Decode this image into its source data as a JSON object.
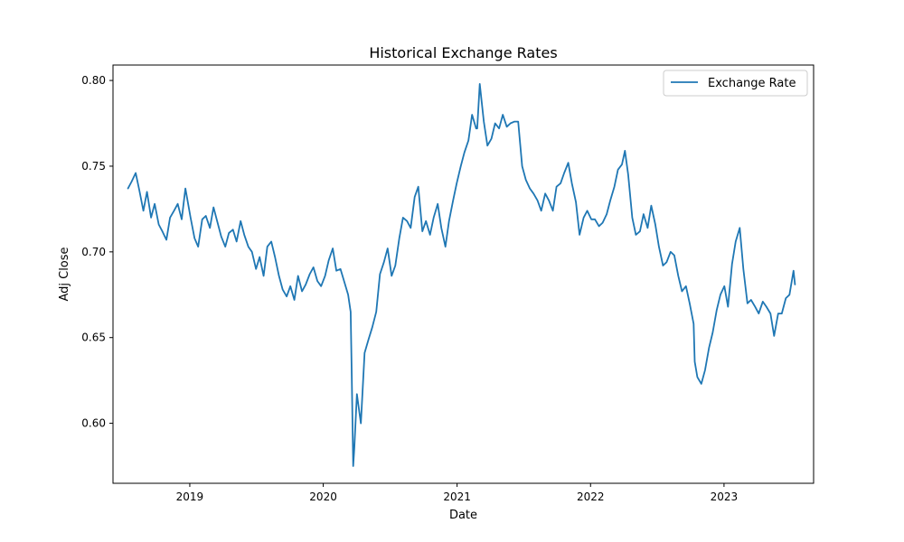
{
  "chart_data": {
    "type": "line",
    "title": "Historical Exchange Rates",
    "xlabel": "Date",
    "ylabel": "Adj Close",
    "xlim": [
      "2018-06-05",
      "2023-09-03"
    ],
    "ylim": [
      0.565,
      0.809
    ],
    "x_ticks": [
      "2019-01-01",
      "2020-01-01",
      "2021-01-01",
      "2022-01-01",
      "2023-01-01"
    ],
    "x_tick_labels": [
      "2019",
      "2020",
      "2021",
      "2022",
      "2023"
    ],
    "y_ticks": [
      0.6,
      0.65,
      0.7,
      0.75,
      0.8
    ],
    "y_tick_labels": [
      "0.60",
      "0.65",
      "0.70",
      "0.75",
      "0.80"
    ],
    "grid": false,
    "legend": {
      "position": "top-right"
    },
    "colors": {
      "series": "#1f77b4"
    },
    "series": [
      {
        "name": "Exchange Rate",
        "x": [
          "2018-07-16",
          "2018-07-26",
          "2018-08-06",
          "2018-08-16",
          "2018-08-27",
          "2018-09-06",
          "2018-09-17",
          "2018-09-27",
          "2018-10-08",
          "2018-10-18",
          "2018-10-29",
          "2018-11-08",
          "2018-11-19",
          "2018-11-29",
          "2018-12-10",
          "2018-12-20",
          "2019-01-03",
          "2019-01-14",
          "2019-01-24",
          "2019-02-04",
          "2019-02-14",
          "2019-02-25",
          "2019-03-07",
          "2019-03-18",
          "2019-03-28",
          "2019-04-08",
          "2019-04-18",
          "2019-04-29",
          "2019-05-09",
          "2019-05-20",
          "2019-05-30",
          "2019-06-10",
          "2019-06-20",
          "2019-07-01",
          "2019-07-11",
          "2019-07-22",
          "2019-08-01",
          "2019-08-12",
          "2019-08-22",
          "2019-09-02",
          "2019-09-12",
          "2019-09-23",
          "2019-10-03",
          "2019-10-14",
          "2019-10-24",
          "2019-11-04",
          "2019-11-14",
          "2019-11-25",
          "2019-12-05",
          "2019-12-16",
          "2019-12-26",
          "2020-01-06",
          "2020-01-16",
          "2020-01-27",
          "2020-02-06",
          "2020-02-17",
          "2020-02-27",
          "2020-03-09",
          "2020-03-16",
          "2020-03-19",
          "2020-03-23",
          "2020-03-26",
          "2020-04-02",
          "2020-04-13",
          "2020-04-23",
          "2020-05-04",
          "2020-05-14",
          "2020-05-25",
          "2020-06-04",
          "2020-06-15",
          "2020-06-25",
          "2020-07-06",
          "2020-07-16",
          "2020-07-27",
          "2020-08-06",
          "2020-08-17",
          "2020-08-27",
          "2020-09-07",
          "2020-09-17",
          "2020-09-28",
          "2020-10-08",
          "2020-10-19",
          "2020-10-29",
          "2020-11-09",
          "2020-11-19",
          "2020-11-30",
          "2020-12-10",
          "2020-12-21",
          "2020-12-31",
          "2021-01-11",
          "2021-01-21",
          "2021-02-01",
          "2021-02-11",
          "2021-02-22",
          "2021-02-25",
          "2021-03-04",
          "2021-03-15",
          "2021-03-25",
          "2021-04-05",
          "2021-04-15",
          "2021-04-26",
          "2021-05-06",
          "2021-05-17",
          "2021-05-27",
          "2021-06-07",
          "2021-06-17",
          "2021-06-28",
          "2021-07-08",
          "2021-07-19",
          "2021-07-29",
          "2021-08-09",
          "2021-08-19",
          "2021-08-30",
          "2021-09-09",
          "2021-09-20",
          "2021-09-30",
          "2021-10-11",
          "2021-10-21",
          "2021-11-01",
          "2021-11-11",
          "2021-11-22",
          "2021-12-02",
          "2021-12-13",
          "2021-12-23",
          "2022-01-03",
          "2022-01-13",
          "2022-01-24",
          "2022-02-03",
          "2022-02-14",
          "2022-02-24",
          "2022-03-07",
          "2022-03-17",
          "2022-03-28",
          "2022-04-05",
          "2022-04-14",
          "2022-04-25",
          "2022-05-05",
          "2022-05-16",
          "2022-05-26",
          "2022-06-06",
          "2022-06-16",
          "2022-06-27",
          "2022-07-07",
          "2022-07-18",
          "2022-07-28",
          "2022-08-08",
          "2022-08-18",
          "2022-08-29",
          "2022-09-08",
          "2022-09-19",
          "2022-09-29",
          "2022-10-10",
          "2022-10-13",
          "2022-10-20",
          "2022-10-31",
          "2022-11-10",
          "2022-11-21",
          "2022-12-01",
          "2022-12-12",
          "2022-12-22",
          "2023-01-02",
          "2023-01-12",
          "2023-01-23",
          "2023-02-02",
          "2023-02-13",
          "2023-02-23",
          "2023-03-06",
          "2023-03-16",
          "2023-03-27",
          "2023-04-06",
          "2023-04-17",
          "2023-04-27",
          "2023-05-08",
          "2023-05-18",
          "2023-05-29",
          "2023-06-08",
          "2023-06-19",
          "2023-06-29",
          "2023-07-10",
          "2023-07-14"
        ],
        "y": [
          0.737,
          0.741,
          0.746,
          0.736,
          0.724,
          0.735,
          0.72,
          0.728,
          0.716,
          0.712,
          0.707,
          0.72,
          0.724,
          0.728,
          0.719,
          0.737,
          0.72,
          0.708,
          0.703,
          0.719,
          0.721,
          0.714,
          0.726,
          0.717,
          0.709,
          0.703,
          0.711,
          0.713,
          0.706,
          0.718,
          0.71,
          0.703,
          0.7,
          0.69,
          0.697,
          0.686,
          0.703,
          0.706,
          0.697,
          0.686,
          0.678,
          0.674,
          0.68,
          0.672,
          0.686,
          0.677,
          0.681,
          0.687,
          0.691,
          0.683,
          0.68,
          0.686,
          0.695,
          0.702,
          0.689,
          0.69,
          0.683,
          0.675,
          0.665,
          0.628,
          0.575,
          0.586,
          0.617,
          0.6,
          0.641,
          0.649,
          0.656,
          0.665,
          0.687,
          0.694,
          0.702,
          0.686,
          0.692,
          0.708,
          0.72,
          0.718,
          0.714,
          0.732,
          0.738,
          0.712,
          0.718,
          0.71,
          0.72,
          0.728,
          0.714,
          0.703,
          0.718,
          0.73,
          0.74,
          0.75,
          0.758,
          0.765,
          0.78,
          0.772,
          0.772,
          0.798,
          0.776,
          0.762,
          0.766,
          0.775,
          0.772,
          0.78,
          0.773,
          0.775,
          0.776,
          0.776,
          0.75,
          0.742,
          0.737,
          0.734,
          0.73,
          0.724,
          0.734,
          0.73,
          0.724,
          0.738,
          0.74,
          0.746,
          0.752,
          0.74,
          0.729,
          0.71,
          0.72,
          0.724,
          0.719,
          0.719,
          0.715,
          0.717,
          0.722,
          0.73,
          0.738,
          0.748,
          0.751,
          0.759,
          0.745,
          0.72,
          0.71,
          0.712,
          0.722,
          0.714,
          0.727,
          0.716,
          0.703,
          0.692,
          0.694,
          0.7,
          0.698,
          0.686,
          0.677,
          0.68,
          0.67,
          0.658,
          0.636,
          0.627,
          0.623,
          0.631,
          0.644,
          0.653,
          0.666,
          0.675,
          0.68,
          0.668,
          0.693,
          0.706,
          0.714,
          0.69,
          0.67,
          0.672,
          0.668,
          0.664,
          0.671,
          0.668,
          0.664,
          0.651,
          0.664,
          0.664,
          0.673,
          0.675,
          0.689,
          0.681
        ]
      }
    ]
  }
}
